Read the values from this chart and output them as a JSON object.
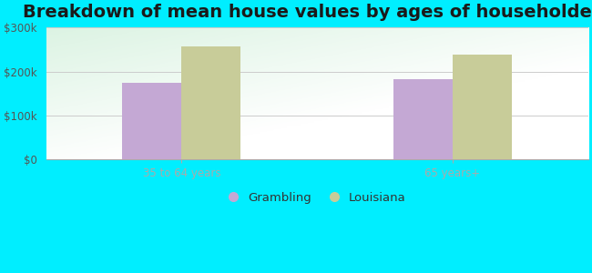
{
  "title": "Breakdown of mean house values by ages of householders",
  "categories": [
    "35 to 64 years",
    "65 years+"
  ],
  "series": {
    "Grambling": [
      175000,
      182000
    ],
    "Louisiana": [
      258000,
      238000
    ]
  },
  "colors": {
    "Grambling": "#c4a8d4",
    "Louisiana": "#c8cc99"
  },
  "ylim": [
    0,
    300000
  ],
  "yticks": [
    0,
    100000,
    200000,
    300000
  ],
  "ytick_labels": [
    "$0",
    "$100k",
    "$200k",
    "$300k"
  ],
  "background_color": "#00eeff",
  "legend_entries": [
    "Grambling",
    "Louisiana"
  ],
  "title_fontsize": 14,
  "tick_fontsize": 8.5,
  "legend_fontsize": 9.5,
  "bar_width": 0.35
}
